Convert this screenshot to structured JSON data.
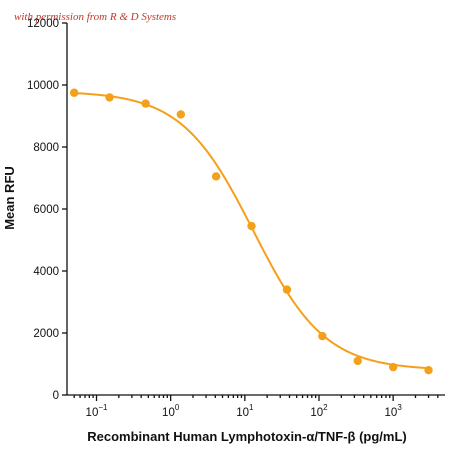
{
  "watermark": "with permission from R & D Systems",
  "colors": {
    "series": "#f5a01a",
    "axis": "#111111",
    "watermark": "#c0392b"
  },
  "chart_data": {
    "type": "scatter",
    "title": "",
    "xlabel": "Recombinant Human Lymphotoxin-α/TNF-β (pg/mL)",
    "ylabel": "Mean RFU",
    "x_scale": "log",
    "xlim": [
      0.04,
      5000
    ],
    "ylim": [
      0,
      12000
    ],
    "grid": false,
    "legend": "none",
    "x_ticks": [
      {
        "value": 0.1,
        "base": "10",
        "exp": "−1"
      },
      {
        "value": 1,
        "base": "10",
        "exp": "0"
      },
      {
        "value": 10,
        "base": "10",
        "exp": "1"
      },
      {
        "value": 100,
        "base": "10",
        "exp": "2"
      },
      {
        "value": 1000,
        "base": "10",
        "exp": "3"
      }
    ],
    "y_ticks": [
      {
        "value": 0,
        "label": "0"
      },
      {
        "value": 2000,
        "label": "2000"
      },
      {
        "value": 4000,
        "label": "4000"
      },
      {
        "value": 6000,
        "label": "6000"
      },
      {
        "value": 8000,
        "label": "8000"
      },
      {
        "value": 10000,
        "label": "10000"
      },
      {
        "value": 12000,
        "label": "12000"
      }
    ],
    "points": [
      {
        "x": 0.05,
        "y": 9750
      },
      {
        "x": 0.15,
        "y": 9600
      },
      {
        "x": 0.46,
        "y": 9400
      },
      {
        "x": 1.37,
        "y": 9050
      },
      {
        "x": 4.1,
        "y": 7050
      },
      {
        "x": 12.3,
        "y": 5450
      },
      {
        "x": 37,
        "y": 3400
      },
      {
        "x": 111,
        "y": 1900
      },
      {
        "x": 333,
        "y": 1100
      },
      {
        "x": 1000,
        "y": 900
      },
      {
        "x": 3000,
        "y": 800
      }
    ],
    "fit_curve": {
      "type": "4PL",
      "top": 9800,
      "bottom": 800,
      "ec50": 13,
      "hill": 0.9
    }
  }
}
